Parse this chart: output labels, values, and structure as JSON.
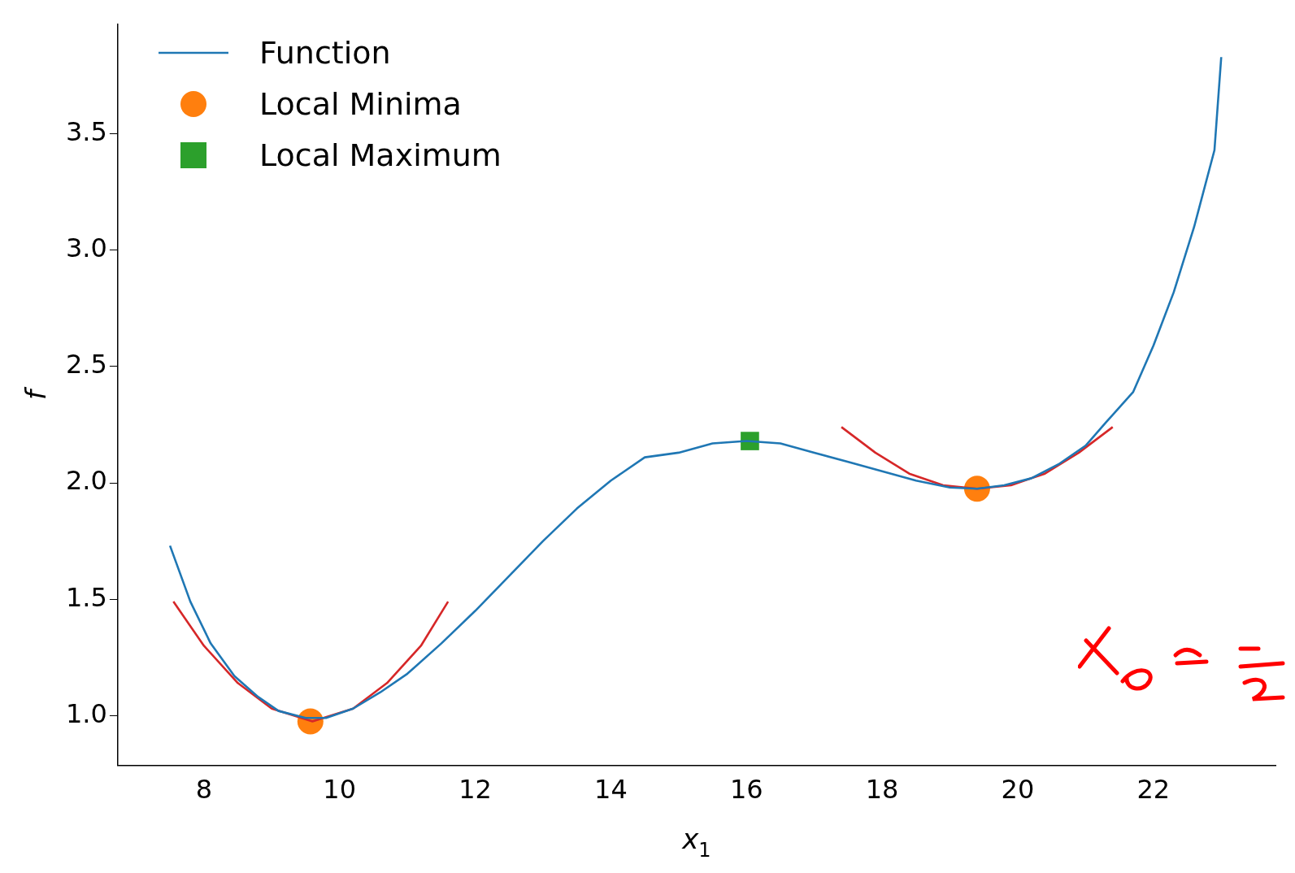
{
  "chart_data": {
    "type": "line",
    "xlabel": "x$_{1}$",
    "ylabel": "f",
    "xlim": [
      6.73,
      23.8
    ],
    "xticks": [
      8,
      10,
      12,
      14,
      16,
      18,
      20,
      22
    ],
    "ylim": [
      0.786,
      3.97
    ],
    "yticks": [
      {
        "value": 1,
        "label": "1.0"
      },
      1.5,
      {
        "value": 2,
        "label": "2.0"
      },
      2.5,
      {
        "value": 3,
        "label": "3.0"
      },
      3.5
    ],
    "grid": false,
    "legend": "top left",
    "series": [
      {
        "name": "Function",
        "color": "#1f77b4",
        "marker": "none",
        "x": [
          7.5,
          7.8,
          8.1,
          8.45,
          8.8,
          9.1,
          9.5,
          9.8,
          10.2,
          10.6,
          11,
          11.5,
          12,
          12.5,
          13,
          13.5,
          14,
          14.5,
          15,
          15.5,
          16,
          16.5,
          17,
          17.5,
          18,
          18.5,
          19,
          19.4,
          19.8,
          20.2,
          20.6,
          21,
          21.3,
          21.7,
          22,
          22.3,
          22.6,
          22.9,
          23
        ],
        "values": [
          1.73,
          1.49,
          1.31,
          1.17,
          1.08,
          1.02,
          0.99,
          0.99,
          1.03,
          1.1,
          1.18,
          1.31,
          1.45,
          1.6,
          1.75,
          1.89,
          2.01,
          2.11,
          2.13,
          2.17,
          2.18,
          2.17,
          2.13,
          2.09,
          2.05,
          2.01,
          1.98,
          1.975,
          1.99,
          2.02,
          2.08,
          2.16,
          2.26,
          2.39,
          2.59,
          2.82,
          3.1,
          3.43,
          3.83
        ]
      },
      {
        "color": "#d62728",
        "marker": "none",
        "x": [
          7.55,
          8,
          8.5,
          9,
          9.6,
          10.2,
          10.7,
          11.2,
          11.6
        ],
        "values": [
          1.49,
          1.3,
          1.14,
          1.03,
          0.975,
          1.03,
          1.14,
          1.3,
          1.49
        ]
      },
      {
        "color": "#d62728",
        "marker": "none",
        "x": [
          17.4,
          17.9,
          18.4,
          18.9,
          19.4,
          19.9,
          20.4,
          20.9,
          21.4
        ],
        "values": [
          2.24,
          2.13,
          2.04,
          1.99,
          1.975,
          1.99,
          2.04,
          2.13,
          2.24
        ]
      },
      {
        "name": "Local Minima",
        "type": "scatter",
        "color": "#ff7f0e",
        "marker": "circle",
        "x": [
          9.57,
          19.4
        ],
        "values": [
          0.975,
          1.975
        ]
      },
      {
        "name": "Local Maximum",
        "type": "scatter",
        "color": "#2ca02c",
        "marker": "square",
        "x": [
          16.05
        ],
        "values": [
          2.18
        ]
      }
    ]
  }
}
